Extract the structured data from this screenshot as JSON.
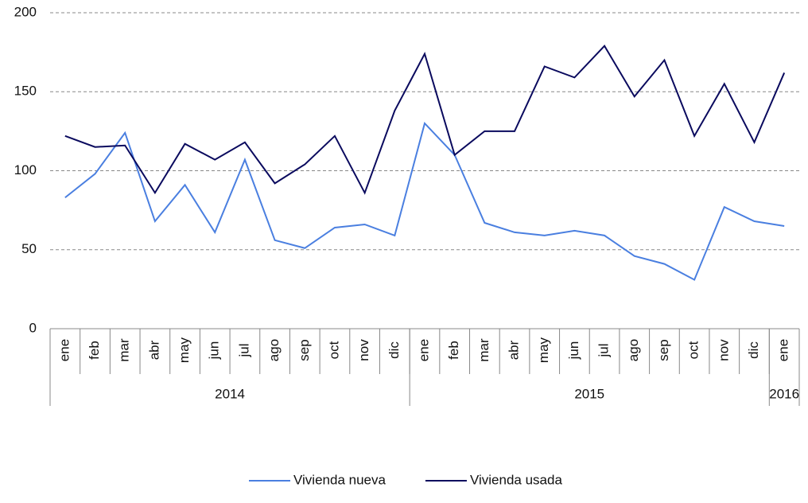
{
  "chart_data": {
    "type": "line",
    "categories": [
      "ene",
      "feb",
      "mar",
      "abr",
      "may",
      "jun",
      "jul",
      "ago",
      "sep",
      "oct",
      "nov",
      "dic",
      "ene",
      "feb",
      "mar",
      "abr",
      "may",
      "jun",
      "jul",
      "ago",
      "sep",
      "oct",
      "nov",
      "dic",
      "ene"
    ],
    "x_groups": [
      "2014",
      "2015",
      "2016"
    ],
    "series": [
      {
        "name": "Vivienda nueva",
        "color": "#4a7fe0",
        "values": [
          83,
          98,
          124,
          68,
          91,
          61,
          107,
          56,
          51,
          64,
          66,
          59,
          130,
          110,
          67,
          61,
          59,
          62,
          59,
          46,
          41,
          31,
          77,
          68,
          65
        ]
      },
      {
        "name": "Vivienda usada",
        "color": "#0a0a5e",
        "values": [
          122,
          115,
          116,
          86,
          117,
          107,
          118,
          92,
          104,
          122,
          86,
          138,
          174,
          110,
          125,
          125,
          166,
          159,
          179,
          147,
          170,
          122,
          155,
          118,
          162
        ]
      }
    ],
    "ylim": [
      0,
      200
    ],
    "yticks": [
      0,
      50,
      100,
      150,
      200
    ],
    "grid": true,
    "legend": "bottom"
  }
}
